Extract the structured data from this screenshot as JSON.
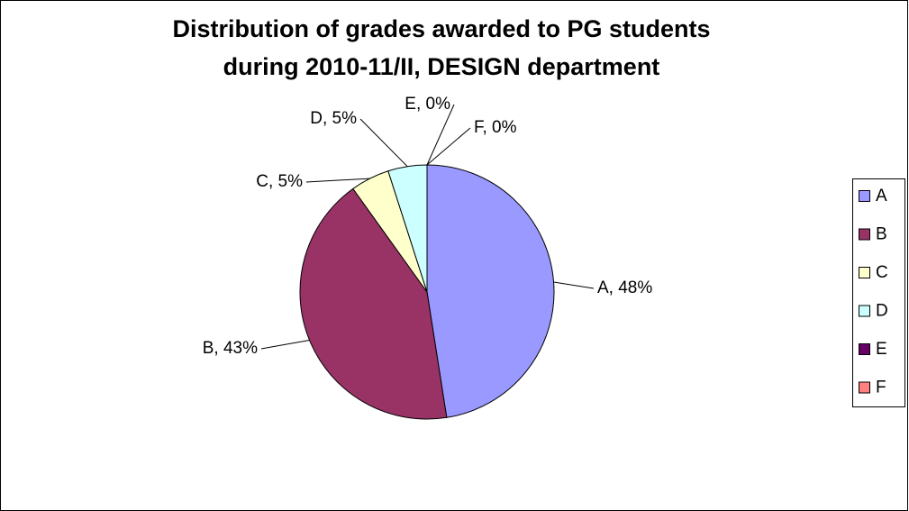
{
  "chart_data": {
    "type": "pie",
    "title": [
      "Distribution of grades awarded to PG students",
      "during 2010-11/II, DESIGN department"
    ],
    "categories": [
      "A",
      "B",
      "C",
      "D",
      "E",
      "F"
    ],
    "values": [
      48,
      43,
      5,
      5,
      0,
      0
    ],
    "value_labels": [
      "A, 48%",
      "B, 43%",
      "C, 5%",
      "D, 5%",
      "E, 0%",
      "F, 0%"
    ],
    "colors": [
      "#9999ff",
      "#993366",
      "#ffffcc",
      "#ccffff",
      "#660066",
      "#ff8080"
    ],
    "legend": "right"
  }
}
